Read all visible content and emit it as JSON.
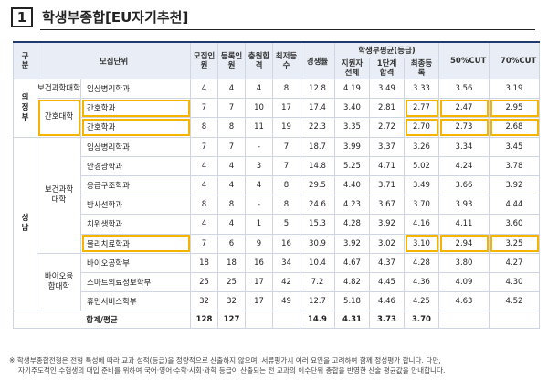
{
  "title": {
    "number": "1",
    "text": "학생부종합[EU자기추천]"
  },
  "headers": {
    "region": "구분",
    "unit": "모집단위",
    "quota": "모집인원",
    "enrolled": "등록인원",
    "extra": "충원합격",
    "min_rank": "최저등수",
    "ratio": "경쟁률",
    "gpa_group": "학생부평균(등급)",
    "applicants": "지원자전체",
    "stage1": "1단계합격",
    "final": "최종등록",
    "cut50": "50%CUT",
    "cut70": "70%CUT"
  },
  "regions": {
    "uijeongbu": "의정부",
    "seongnam": "성남"
  },
  "rows": [
    {
      "college": "보건과학대학",
      "unit": "임상병리학과",
      "quota": "4",
      "enrolled": "4",
      "extra": "4",
      "min_rank": "8",
      "ratio": "12.8",
      "applicants": "4.19",
      "stage1": "3.49",
      "final": "3.33",
      "cut50": "3.56",
      "cut70": "3.19"
    },
    {
      "college": "간호대학",
      "unit": "간호학과",
      "quota": "7",
      "enrolled": "7",
      "extra": "10",
      "min_rank": "17",
      "ratio": "17.4",
      "applicants": "3.40",
      "stage1": "2.81",
      "final": "2.77",
      "cut50": "2.47",
      "cut70": "2.95"
    },
    {
      "college": "",
      "unit": "간호학과",
      "quota": "8",
      "enrolled": "8",
      "extra": "11",
      "min_rank": "19",
      "ratio": "22.3",
      "applicants": "3.35",
      "stage1": "2.72",
      "final": "2.70",
      "cut50": "2.73",
      "cut70": "2.68"
    },
    {
      "college": "보건과학대학",
      "unit": "임상병리학과",
      "quota": "7",
      "enrolled": "7",
      "extra": "-",
      "min_rank": "7",
      "ratio": "18.7",
      "applicants": "3.99",
      "stage1": "3.37",
      "final": "3.26",
      "cut50": "3.34",
      "cut70": "3.45"
    },
    {
      "college": "",
      "unit": "안경광학과",
      "quota": "4",
      "enrolled": "4",
      "extra": "3",
      "min_rank": "7",
      "ratio": "14.8",
      "applicants": "5.25",
      "stage1": "4.71",
      "final": "5.02",
      "cut50": "4.24",
      "cut70": "3.78"
    },
    {
      "college": "",
      "unit": "응급구조학과",
      "quota": "4",
      "enrolled": "4",
      "extra": "4",
      "min_rank": "8",
      "ratio": "29.5",
      "applicants": "4.40",
      "stage1": "3.71",
      "final": "3.49",
      "cut50": "3.66",
      "cut70": "3.92"
    },
    {
      "college": "",
      "unit": "방사선학과",
      "quota": "8",
      "enrolled": "8",
      "extra": "-",
      "min_rank": "8",
      "ratio": "24.6",
      "applicants": "4.23",
      "stage1": "3.67",
      "final": "3.70",
      "cut50": "3.93",
      "cut70": "4.44"
    },
    {
      "college": "",
      "unit": "치위생학과",
      "quota": "4",
      "enrolled": "4",
      "extra": "1",
      "min_rank": "5",
      "ratio": "15.3",
      "applicants": "4.28",
      "stage1": "3.92",
      "final": "4.16",
      "cut50": "4.11",
      "cut70": "3.60"
    },
    {
      "college": "",
      "unit": "물리치료학과",
      "quota": "7",
      "enrolled": "6",
      "extra": "9",
      "min_rank": "16",
      "ratio": "30.9",
      "applicants": "3.92",
      "stage1": "3.02",
      "final": "3.10",
      "cut50": "2.94",
      "cut70": "3.25"
    },
    {
      "college": "바이오융합대학",
      "unit": "바이오공학부",
      "quota": "18",
      "enrolled": "18",
      "extra": "16",
      "min_rank": "34",
      "ratio": "10.4",
      "applicants": "4.67",
      "stage1": "4.37",
      "final": "4.28",
      "cut50": "3.80",
      "cut70": "4.27"
    },
    {
      "college": "",
      "unit": "스마트의료정보학부",
      "quota": "25",
      "enrolled": "25",
      "extra": "17",
      "min_rank": "42",
      "ratio": "7.2",
      "applicants": "4.82",
      "stage1": "4.45",
      "final": "4.36",
      "cut50": "4.09",
      "cut70": "4.30"
    },
    {
      "college": "",
      "unit": "휴먼서비스학부",
      "quota": "32",
      "enrolled": "32",
      "extra": "17",
      "min_rank": "49",
      "ratio": "12.7",
      "applicants": "5.18",
      "stage1": "4.46",
      "final": "4.25",
      "cut50": "4.63",
      "cut70": "4.52"
    }
  ],
  "total": {
    "label": "합계/평균",
    "quota": "128",
    "enrolled": "127",
    "ratio": "14.9",
    "applicants": "4.31",
    "stage1": "3.73",
    "final": "3.70"
  },
  "note": {
    "line1": "※ 학생부종합전형은 전형 특성에 따라 교과 성적(등급)을 정량적으로 산출하지 않으며, 서류평가시 여러 요인을 고려하여 함께 정성평가 합니다. 다만,",
    "line2": "자기주도적인 수험생의 대입 준비를 위하여 국어·영어·수학·사회·과학 등급이 산출되는 전 교과의 이수단위 총합을 반영한 산술 평균값을 안내합니다."
  },
  "highlight_color": "#f5b400"
}
